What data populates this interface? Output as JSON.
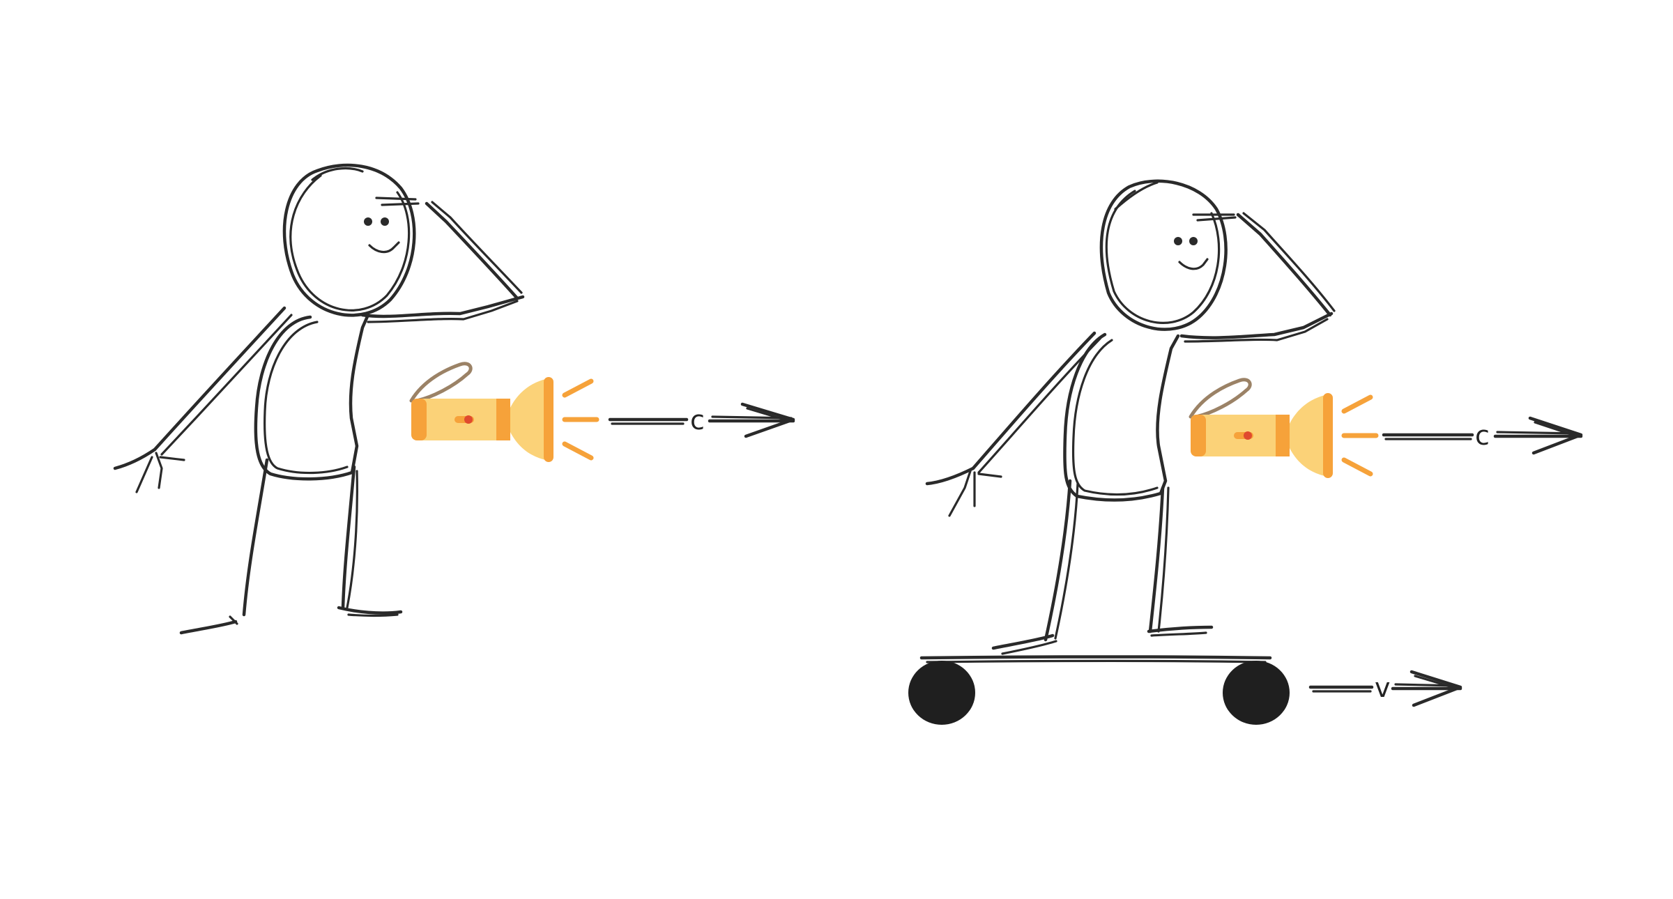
{
  "labels": {
    "light_speed_left": "c",
    "light_speed_right": "c",
    "board_velocity": "v"
  },
  "colors": {
    "ink": "#2a2a2a",
    "flashlight_body": "#fbd278",
    "flashlight_accent": "#f6a23a",
    "flashlight_switch": "#e04a2e",
    "flashlight_strap": "#9b8266",
    "wheel": "#1f1f1f"
  },
  "icons": [
    "stick-figure",
    "flashlight-icon",
    "skateboard",
    "arrow"
  ]
}
